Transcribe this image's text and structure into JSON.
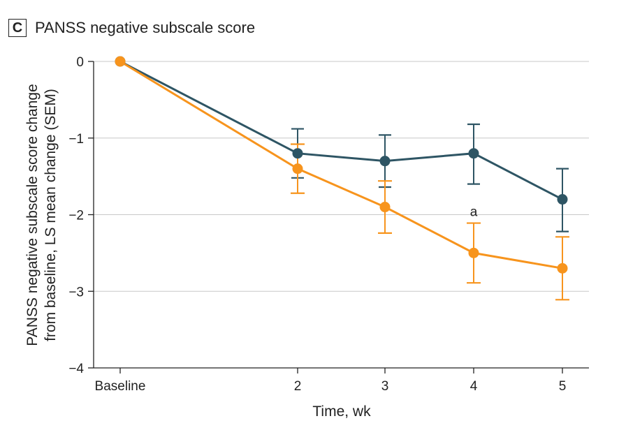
{
  "panel": {
    "letter": "C",
    "title": "PANSS negative subscale score"
  },
  "chart_data": {
    "type": "line",
    "title": "PANSS negative subscale score",
    "xlabel": "Time, wk",
    "ylabel_lines": [
      "PANSS negative subscale score change",
      "from baseline, LS mean change (SEM)"
    ],
    "x": [
      0,
      2,
      3,
      4,
      5
    ],
    "x_tick_labels": [
      "Baseline",
      "2",
      "3",
      "4",
      "5"
    ],
    "ylim": [
      -4,
      0
    ],
    "y_ticks": [
      0,
      -1,
      -2,
      -3,
      -4
    ],
    "y_tick_labels": [
      "0",
      "−1",
      "−2",
      "−3",
      "−4"
    ],
    "grid": "horizontal",
    "series": [
      {
        "name": "dark",
        "color": "#2e5564",
        "values": [
          0,
          -1.2,
          -1.3,
          -1.2,
          -1.8
        ],
        "err_low": [
          null,
          -1.52,
          -1.64,
          -1.6,
          -2.22
        ],
        "err_high": [
          null,
          -0.88,
          -0.96,
          -0.82,
          -1.4
        ]
      },
      {
        "name": "orange",
        "color": "#f7941d",
        "values": [
          0,
          -1.4,
          -1.9,
          -2.5,
          -2.7
        ],
        "err_low": [
          null,
          -1.72,
          -2.24,
          -2.89,
          -3.11
        ],
        "err_high": [
          null,
          -1.08,
          -1.56,
          -2.11,
          -2.29
        ]
      }
    ],
    "annotations": [
      {
        "text": "a",
        "x": 4,
        "y": -2.0
      }
    ]
  }
}
